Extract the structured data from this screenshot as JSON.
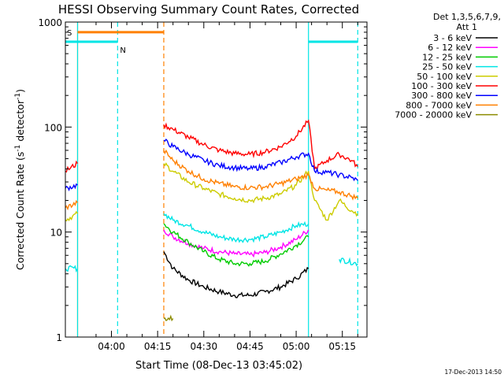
{
  "chart_data": {
    "type": "line",
    "title": "HESSI Observing Summary Count Rates, Corrected",
    "xlabel": "Start Time (08-Dec-13 03:45:02)",
    "ylabel": "Corrected Count Rate (s",
    "ylabel_sup1": "-1",
    "ylabel_mid": " detector",
    "ylabel_sup2": "-1",
    "ylabel_end": ")",
    "yscale": "log",
    "ylim": [
      1,
      1000
    ],
    "xlim": [
      "03:45:02",
      "05:23:00"
    ],
    "x_ticks": [
      "04:00",
      "04:15",
      "04:30",
      "04:45",
      "05:00",
      "05:15"
    ],
    "y_ticks": [
      "1",
      "10",
      "100",
      "1000"
    ],
    "legend_header": [
      "Det 1,3,5,6,7,9,",
      "Att 1"
    ],
    "legend_position": "right",
    "flag_labels": {
      "saa": "S",
      "night": "N"
    },
    "timestamp": "17-Dec-2013 14:50",
    "series": [
      {
        "name": "3 - 6 keV",
        "color": "#000000",
        "points": [
          [
            "04:17",
            6.5
          ],
          [
            "04:20",
            4.5
          ],
          [
            "04:25",
            3.5
          ],
          [
            "04:30",
            3.0
          ],
          [
            "04:35",
            2.7
          ],
          [
            "04:40",
            2.5
          ],
          [
            "04:45",
            2.5
          ],
          [
            "04:50",
            2.7
          ],
          [
            "04:55",
            3.0
          ],
          [
            "05:00",
            3.6
          ],
          [
            "05:04",
            4.5
          ]
        ]
      },
      {
        "name": "6 - 12 keV",
        "color": "#ff00ff",
        "points": [
          [
            "04:17",
            10.5
          ],
          [
            "04:20",
            9.0
          ],
          [
            "04:25",
            7.8
          ],
          [
            "04:30",
            7.0
          ],
          [
            "04:35",
            6.5
          ],
          [
            "04:40",
            6.2
          ],
          [
            "04:45",
            6.1
          ],
          [
            "04:50",
            6.4
          ],
          [
            "04:55",
            7.2
          ],
          [
            "05:00",
            8.5
          ],
          [
            "05:04",
            10.5
          ]
        ]
      },
      {
        "name": "12 - 25 keV",
        "color": "#00cc00",
        "points": [
          [
            "04:17",
            12.0
          ],
          [
            "04:20",
            10.0
          ],
          [
            "04:25",
            8.0
          ],
          [
            "04:30",
            6.5
          ],
          [
            "04:35",
            5.5
          ],
          [
            "04:40",
            5.0
          ],
          [
            "04:45",
            5.0
          ],
          [
            "04:50",
            5.3
          ],
          [
            "04:55",
            6.2
          ],
          [
            "05:00",
            7.5
          ],
          [
            "05:04",
            9.0
          ]
        ]
      },
      {
        "name": "25 - 50 keV",
        "color": "#00e5e5",
        "points": [
          [
            "03:45",
            4.5
          ],
          [
            "03:49",
            4.5
          ],
          [
            "04:17",
            15.0
          ],
          [
            "04:20",
            13.0
          ],
          [
            "04:25",
            11.5
          ],
          [
            "04:30",
            10.0
          ],
          [
            "04:35",
            9.0
          ],
          [
            "04:40",
            8.5
          ],
          [
            "04:45",
            8.5
          ],
          [
            "04:50",
            9.0
          ],
          [
            "04:55",
            10.0
          ],
          [
            "05:00",
            11.5
          ],
          [
            "05:04",
            12.0
          ],
          [
            "05:14",
            5.5
          ],
          [
            "05:20",
            5.0
          ]
        ]
      },
      {
        "name": "50 - 100 keV",
        "color": "#cccc00",
        "points": [
          [
            "03:45",
            13.0
          ],
          [
            "03:49",
            15.0
          ],
          [
            "04:17",
            45.0
          ],
          [
            "04:20",
            38.0
          ],
          [
            "04:25",
            30.0
          ],
          [
            "04:30",
            26.0
          ],
          [
            "04:35",
            23.0
          ],
          [
            "04:40",
            21.0
          ],
          [
            "04:45",
            20.0
          ],
          [
            "04:50",
            21.0
          ],
          [
            "04:55",
            23.0
          ],
          [
            "05:00",
            28.0
          ],
          [
            "05:04",
            38.0
          ],
          [
            "05:06",
            20.0
          ],
          [
            "05:10",
            13.0
          ],
          [
            "05:14",
            20.0
          ],
          [
            "05:18",
            16.0
          ],
          [
            "05:20",
            15.0
          ]
        ]
      },
      {
        "name": "100 - 300 keV",
        "color": "#ff0000",
        "points": [
          [
            "03:45",
            38.0
          ],
          [
            "03:49",
            45.0
          ],
          [
            "04:17",
            105.0
          ],
          [
            "04:20",
            95.0
          ],
          [
            "04:25",
            80.0
          ],
          [
            "04:30",
            68.0
          ],
          [
            "04:35",
            60.0
          ],
          [
            "04:40",
            56.0
          ],
          [
            "04:45",
            55.0
          ],
          [
            "04:50",
            58.0
          ],
          [
            "04:55",
            65.0
          ],
          [
            "05:00",
            82.0
          ],
          [
            "05:04",
            115.0
          ],
          [
            "05:06",
            40.0
          ],
          [
            "05:10",
            48.0
          ],
          [
            "05:14",
            55.0
          ],
          [
            "05:18",
            48.0
          ],
          [
            "05:20",
            42.0
          ]
        ]
      },
      {
        "name": "300 - 800 keV",
        "color": "#0000ff",
        "points": [
          [
            "03:45",
            26.0
          ],
          [
            "03:49",
            28.0
          ],
          [
            "04:17",
            75.0
          ],
          [
            "04:20",
            65.0
          ],
          [
            "04:25",
            55.0
          ],
          [
            "04:30",
            48.0
          ],
          [
            "04:35",
            43.0
          ],
          [
            "04:40",
            41.0
          ],
          [
            "04:45",
            40.0
          ],
          [
            "04:50",
            42.0
          ],
          [
            "04:55",
            46.0
          ],
          [
            "05:00",
            52.0
          ],
          [
            "05:04",
            56.0
          ],
          [
            "05:06",
            38.0
          ],
          [
            "05:10",
            37.0
          ],
          [
            "05:14",
            35.0
          ],
          [
            "05:18",
            33.0
          ],
          [
            "05:20",
            31.0
          ]
        ]
      },
      {
        "name": "800 - 7000 keV",
        "color": "#ff8000",
        "points": [
          [
            "03:45",
            17.0
          ],
          [
            "03:49",
            19.0
          ],
          [
            "04:17",
            60.0
          ],
          [
            "04:20",
            48.0
          ],
          [
            "04:25",
            38.0
          ],
          [
            "04:30",
            32.0
          ],
          [
            "04:35",
            29.0
          ],
          [
            "04:40",
            27.0
          ],
          [
            "04:45",
            26.5
          ],
          [
            "04:50",
            27.0
          ],
          [
            "04:55",
            29.0
          ],
          [
            "05:00",
            32.0
          ],
          [
            "05:04",
            35.0
          ],
          [
            "05:06",
            26.0
          ],
          [
            "05:10",
            25.0
          ],
          [
            "05:14",
            24.0
          ],
          [
            "05:18",
            22.0
          ],
          [
            "05:20",
            21.0
          ]
        ]
      },
      {
        "name": "7000 - 20000 keV",
        "color": "#8c8c00",
        "points": [
          [
            "04:17",
            1.5
          ],
          [
            "04:20",
            1.5
          ]
        ]
      }
    ],
    "saa_flag": {
      "color": "#ff8000",
      "level": 800,
      "start": "03:49",
      "end": "04:17"
    },
    "night_flags": {
      "color": "#00e5e5",
      "level": 650,
      "intervals": [
        [
          "03:45",
          "03:49"
        ],
        [
          "03:49",
          "04:02"
        ],
        [
          "05:04",
          "05:20"
        ]
      ]
    },
    "attenuator_lines": [
      {
        "color": "#ff8000",
        "style": "solid",
        "t": "03:49"
      },
      {
        "color": "#ff8000",
        "style": "dashed",
        "t": "04:17"
      },
      {
        "color": "#00e5e5",
        "style": "solid",
        "t": "03:49"
      },
      {
        "color": "#00e5e5",
        "style": "dashed",
        "t": "04:02"
      },
      {
        "color": "#00e5e5",
        "style": "solid",
        "t": "05:04"
      },
      {
        "color": "#00e5e5",
        "style": "dashed",
        "t": "05:20"
      }
    ]
  }
}
